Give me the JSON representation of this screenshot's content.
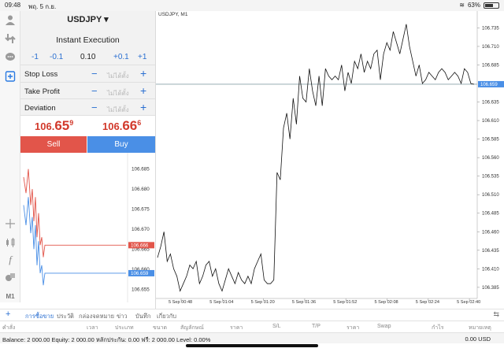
{
  "status": {
    "time": "09:48",
    "date": "พฤ. 5 ก.ย.",
    "battery": "63%",
    "battery_level": 0.63
  },
  "order": {
    "symbol": "USDJPY",
    "execution": "Instant Execution",
    "steps": [
      "-1",
      "-0.1",
      "0.10",
      "+0.1",
      "+1"
    ],
    "fields": [
      {
        "label": "Stop Loss",
        "value": "ไม่ได้ตั้ง"
      },
      {
        "label": "Take Profit",
        "value": "ไม่ได้ตั้ง"
      },
      {
        "label": "Deviation",
        "value": "ไม่ได้ตั้ง"
      }
    ],
    "sell_price": {
      "big": "106.",
      "mid": "65",
      "sup": "9"
    },
    "buy_price": {
      "big": "106.",
      "mid": "66",
      "sup": "6"
    },
    "sell_label": "Sell",
    "buy_label": "Buy"
  },
  "mini_chart": {
    "ticks": [
      "106.685",
      "106.680",
      "106.675",
      "106.670",
      "106.665",
      "106.660",
      "106.655"
    ],
    "ask_label": "106.666",
    "bid_label": "106.659",
    "ask_color": "#e2554a",
    "bid_color": "#4a8fe6"
  },
  "chart_data": {
    "type": "line",
    "title": "USDJPY, M1",
    "ylim": [
      106.37,
      106.745
    ],
    "y_ticks": [
      "106.735",
      "106.710",
      "106.685",
      "106.659",
      "106.635",
      "106.610",
      "106.585",
      "106.560",
      "106.535",
      "106.510",
      "106.485",
      "106.460",
      "106.435",
      "106.410",
      "106.385"
    ],
    "x_ticks": [
      "5 Sep 00:48",
      "5 Sep 01:04",
      "5 Sep 01:20",
      "5 Sep 01:36",
      "5 Sep 01:52",
      "5 Sep 02:08",
      "5 Sep 02:24",
      "5 Sep 02:40"
    ],
    "current_price": "106.659",
    "series": [
      {
        "values": [
          106.425,
          106.44,
          106.46,
          106.42,
          106.43,
          106.41,
          106.4,
          106.38,
          106.39,
          106.4,
          106.415,
          106.41,
          106.42,
          106.39,
          106.4,
          106.415,
          106.42,
          106.4,
          106.41,
          106.39,
          106.38,
          106.395,
          106.41,
          106.4,
          106.39,
          106.405,
          106.395,
          106.39,
          106.4,
          106.39,
          106.41,
          106.42,
          106.43,
          106.395,
          106.39,
          106.39,
          106.395,
          106.54,
          106.53,
          106.6,
          106.62,
          106.585,
          106.64,
          106.605,
          106.67,
          106.64,
          106.635,
          106.68,
          106.65,
          106.63,
          106.67,
          106.63,
          106.68,
          106.67,
          106.665,
          106.67,
          106.665,
          106.685,
          106.65,
          106.675,
          106.66,
          106.69,
          106.68,
          106.7,
          106.675,
          106.69,
          106.68,
          106.7,
          106.705,
          106.665,
          106.7,
          106.715,
          106.705,
          106.73,
          106.715,
          106.7,
          106.72,
          106.74,
          106.71,
          106.69,
          106.67,
          106.685,
          106.66,
          106.665,
          106.675,
          106.67,
          106.665,
          106.675,
          106.68,
          106.675,
          106.665,
          106.67,
          106.675,
          106.67,
          106.66,
          106.68,
          106.675,
          106.66,
          106.659
        ]
      }
    ]
  },
  "tabs": [
    "การซื้อขาย",
    "ประวัติ",
    "กล่องจดหมาย",
    "ข่าว",
    "บันทึก",
    "เกี่ยวกับ"
  ],
  "columns": [
    "คำสั่ง",
    "เวลา",
    "ประเภท",
    "ขนาด",
    "สัญลักษณ์",
    "ราคา",
    "S/L",
    "T/P",
    "ราคา",
    "Swap",
    "กำไร",
    "หมายเหตุ"
  ],
  "balance": {
    "text": "Balance: 2 000.00 Equity: 2 000.00 หลักประกัน: 0.00 ฟรี: 2 000.00 Level: 0.00%",
    "total": "0.00  USD"
  }
}
